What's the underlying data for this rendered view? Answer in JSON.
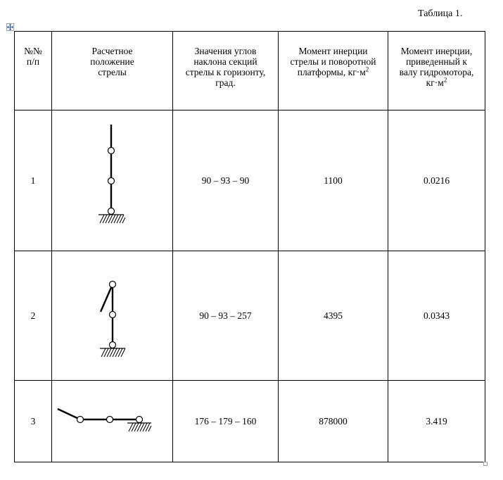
{
  "caption": "Таблица 1.",
  "table": {
    "headers": [
      {
        "text": "№№\nп/п"
      },
      {
        "text": "Расчетное\nположение\nстрелы"
      },
      {
        "text": "Значения углов\nнаклона секций\nстрелы к горизонту,\nград."
      },
      {
        "text": "Момент инерции\nстрелы и поворотной\nплатформы, кг·м",
        "sup": "2"
      },
      {
        "text": "Момент инерции,\nприведенный к\nвалу гидромотора,\nкг·м",
        "sup": "2"
      }
    ],
    "rows": [
      {
        "num": "1",
        "angles": "90 – 93 – 90",
        "moment_platform": "1100",
        "moment_motor": "0.0216",
        "scheme_icon": "vertical-boom-scheme-icon"
      },
      {
        "num": "2",
        "angles": "90 – 93 – 257",
        "moment_platform": "4395",
        "moment_motor": "0.0343",
        "scheme_icon": "folded-boom-scheme-icon"
      },
      {
        "num": "3",
        "angles": "176 – 179 – 160",
        "moment_platform": "878000",
        "moment_motor": "3.419",
        "scheme_icon": "horizontal-boom-scheme-icon"
      }
    ]
  }
}
